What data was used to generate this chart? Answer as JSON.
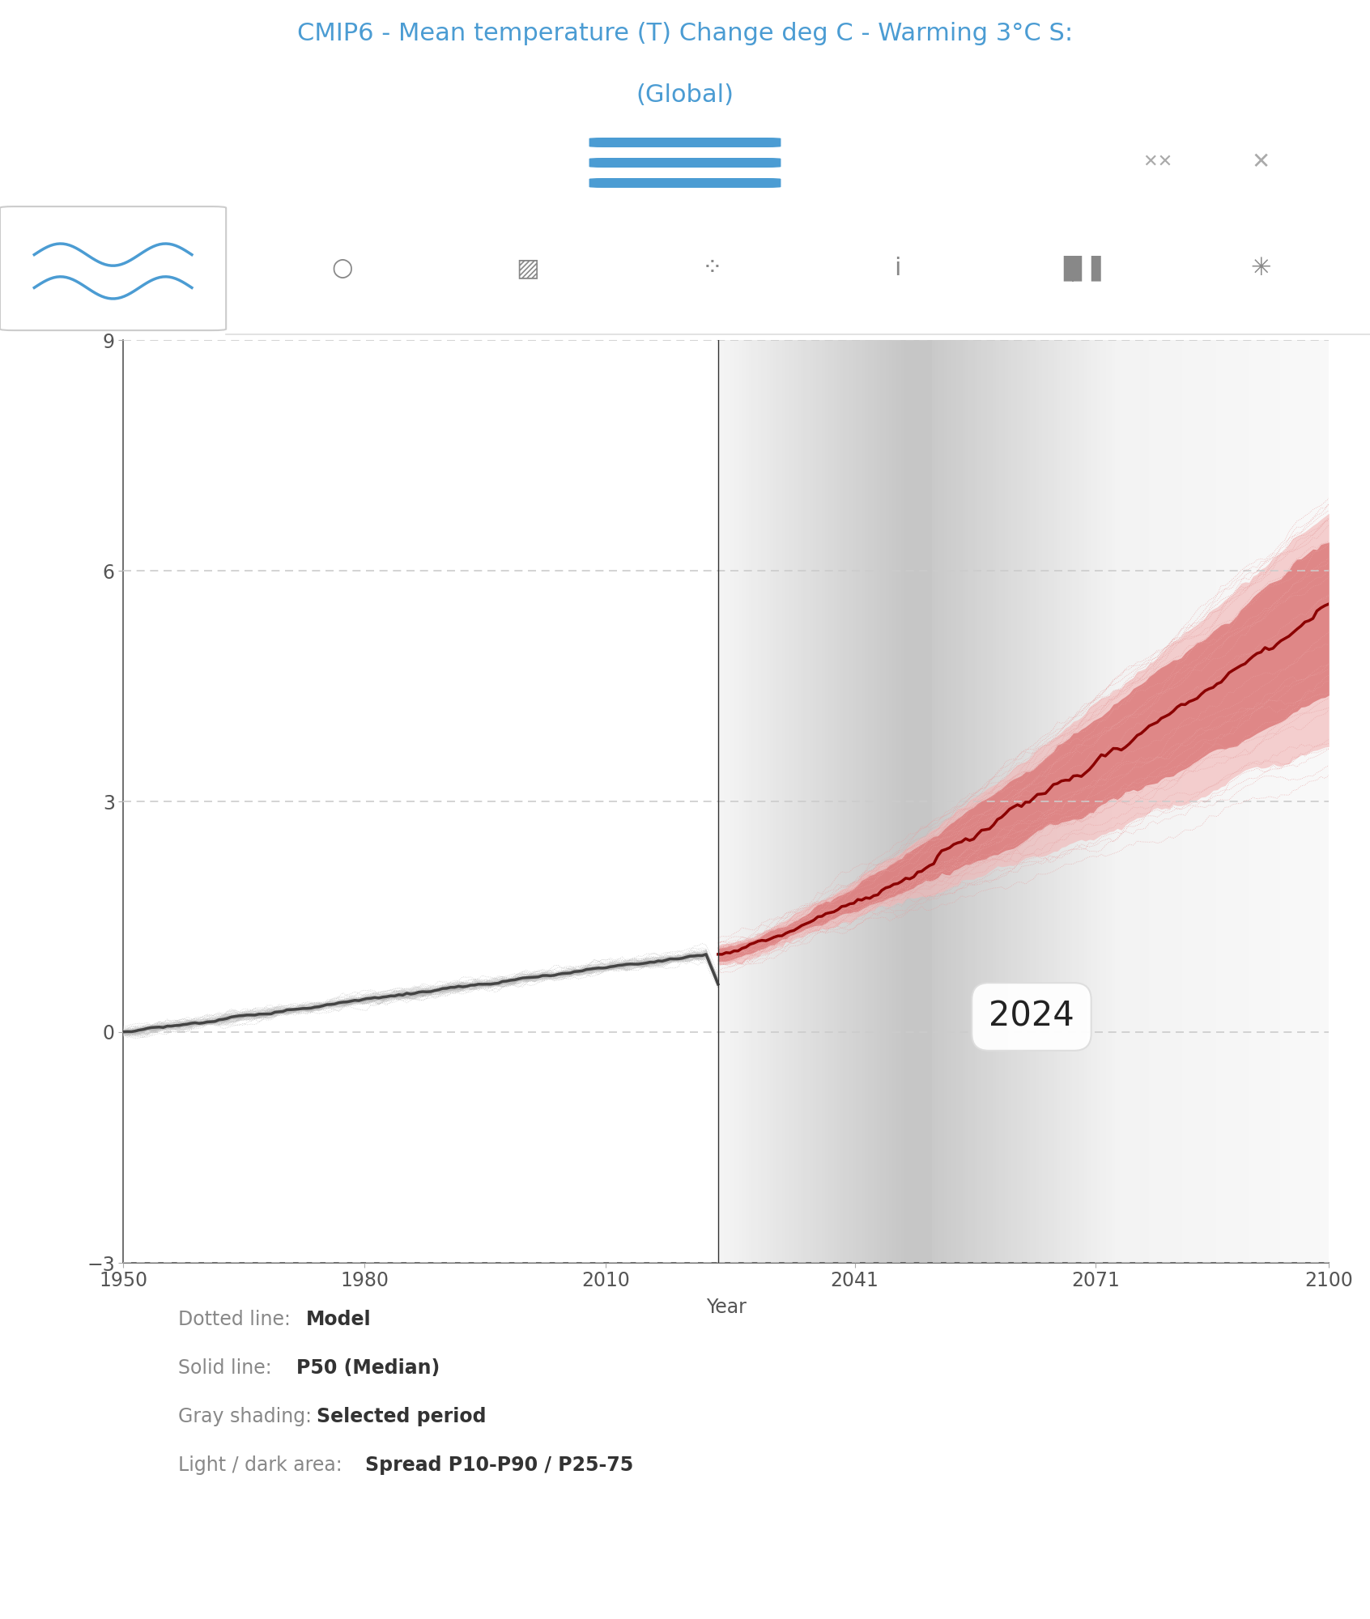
{
  "title_line1": "CMIP6 - Mean temperature (T) Change deg C - Warming 3°C S:",
  "title_line2": "(Global)",
  "title_color": "#4B9CD3",
  "title_fontsize": 22,
  "xmin": 1950,
  "xmax": 2100,
  "ymin": -3,
  "ymax": 9,
  "yticks": [
    -3,
    0,
    3,
    6,
    9
  ],
  "xticks": [
    1950,
    1980,
    2010,
    2041,
    2071,
    2100
  ],
  "xlabel": "Year",
  "split_year": 2024,
  "hist_median_color": "#444444",
  "fut_median_color": "#8B0000",
  "hist_spread_light": "#d0d0d0",
  "hist_spread_dark": "#aaaaaa",
  "fut_spread_light": "#f2b8b8",
  "fut_spread_dark": "#d97070",
  "model_line_hist_color": "#bbbbbb",
  "model_line_fut_color": "#e8a0a0",
  "annotation_year": "2024",
  "legend_texts": [
    [
      "Dotted line: ",
      "Model"
    ],
    [
      "Solid line: ",
      "P50 (Median)"
    ],
    [
      "Gray shading: ",
      "Selected period"
    ],
    [
      "Light / dark area: ",
      "Spread P10-P90 / P25-75"
    ]
  ],
  "legend_color_normal": "#888888",
  "legend_color_bold": "#333333",
  "toolbar_color": "#4B9CD3",
  "icon_color": "#aaaaaa"
}
